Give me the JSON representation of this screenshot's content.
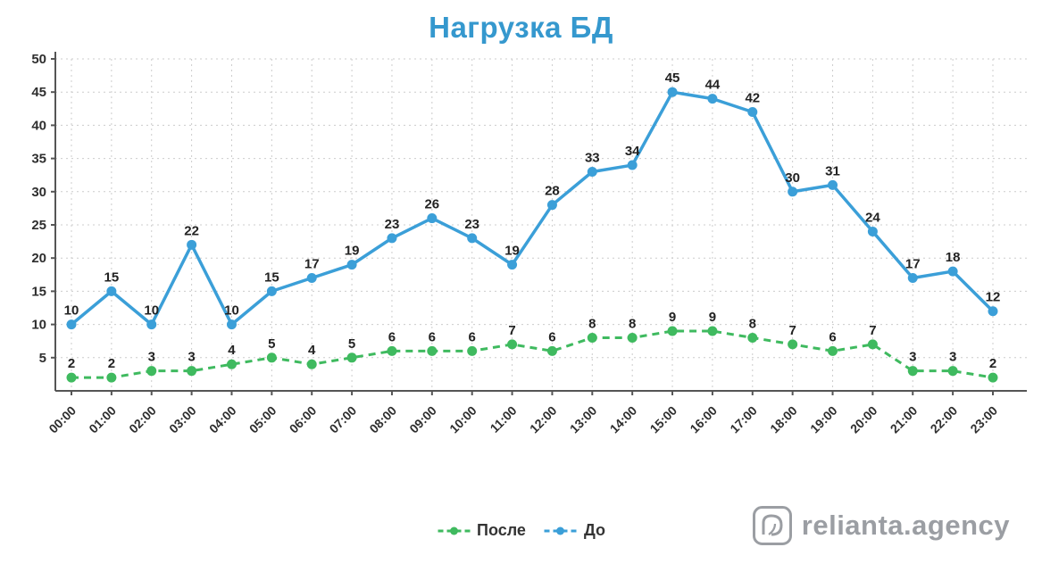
{
  "watermark": {
    "text": "relianta.agency"
  },
  "colors": {
    "title": "#3598ce",
    "watermark": "#9b9ea3",
    "grid": "#cccccc",
    "axis": "#555555"
  },
  "chart_data": {
    "type": "line",
    "title": "Нагрузка БД",
    "categories": [
      "00:00",
      "01:00",
      "02:00",
      "03:00",
      "04:00",
      "05:00",
      "06:00",
      "07:00",
      "08:00",
      "09:00",
      "10:00",
      "11:00",
      "12:00",
      "13:00",
      "14:00",
      "15:00",
      "16:00",
      "17:00",
      "18:00",
      "19:00",
      "20:00",
      "21:00",
      "22:00",
      "23:00"
    ],
    "series": [
      {
        "name": "После",
        "color": "#3fba5f",
        "style": "dashed",
        "values": [
          2,
          2,
          3,
          3,
          4,
          5,
          4,
          5,
          6,
          6,
          6,
          7,
          6,
          8,
          8,
          9,
          9,
          8,
          7,
          6,
          7,
          3,
          3,
          2
        ]
      },
      {
        "name": "До",
        "color": "#3b9fd8",
        "style": "solid",
        "values": [
          10,
          15,
          10,
          22,
          10,
          15,
          17,
          19,
          23,
          26,
          23,
          19,
          28,
          33,
          34,
          45,
          44,
          42,
          30,
          31,
          24,
          17,
          18,
          12
        ]
      }
    ],
    "xlabel": "",
    "ylabel": "",
    "ylim": [
      0,
      50
    ],
    "yticks": [
      5,
      10,
      15,
      20,
      25,
      30,
      35,
      40,
      45,
      50
    ],
    "grid": true,
    "grid_style": "dotted",
    "data_labels": true,
    "legend_position": "bottom"
  }
}
